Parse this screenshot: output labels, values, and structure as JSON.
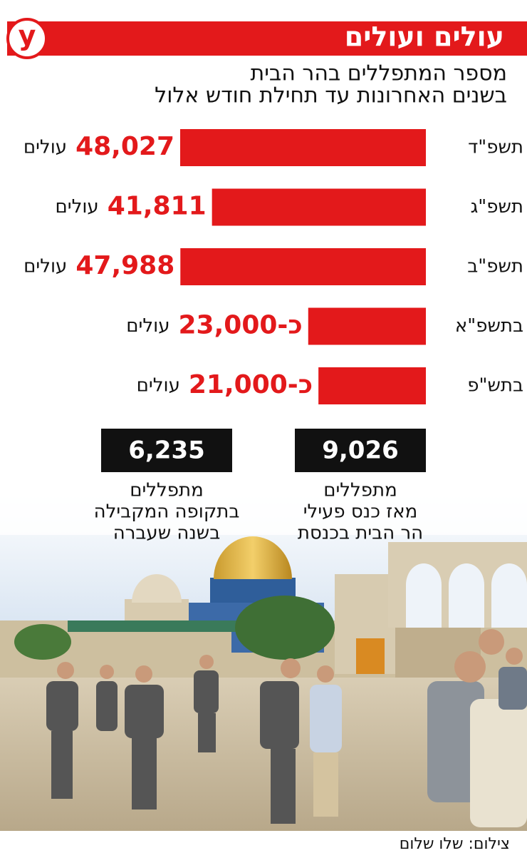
{
  "chart_data": {
    "type": "bar",
    "orientation": "horizontal",
    "title": "עולים ועולים",
    "logo": "y",
    "subtitle": [
      "מספר המתפללים בהר הבית",
      "בשנים האחרונות עד תחילת חודש אלול"
    ],
    "categories": [
      "תשפ\"ד",
      "תשפ\"ג",
      "תשפ\"ב",
      "בתשפ\"א",
      "בתש\"פ"
    ],
    "values": [
      48027,
      41811,
      47988,
      23000,
      21000
    ],
    "value_labels": [
      "48,027",
      "41,811",
      "47,988",
      "כ-23,000",
      "כ-21,000"
    ],
    "unit": "עולים",
    "color": "#e3191b",
    "label_color": "#e3191b",
    "stats": [
      {
        "value": 9026,
        "value_label": "9,026",
        "caption": [
          "מתפללים",
          "מאז כנס פעילי",
          "הר הבית בכנסת"
        ]
      },
      {
        "value": 6235,
        "value_label": "6,235",
        "caption": [
          "מתפללים",
          "בתקופה המקבילה",
          "בשנה שעברה"
        ]
      }
    ],
    "credit": "צילום: שלו שלום"
  }
}
